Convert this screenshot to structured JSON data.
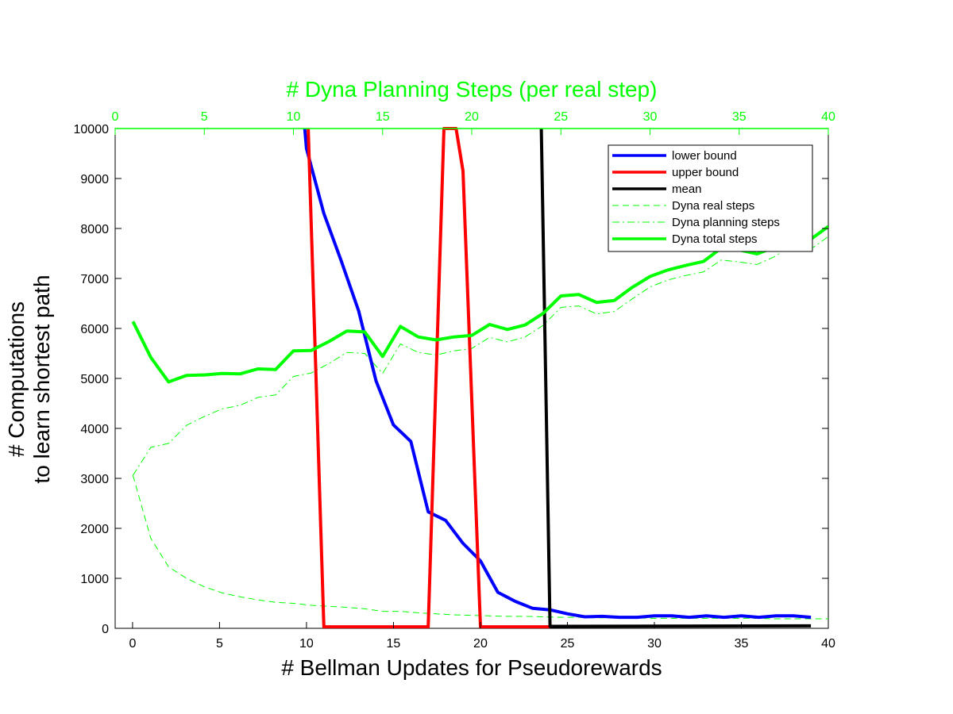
{
  "chart_data": {
    "type": "line",
    "xlabel": "# Bellman Updates for Pseudorewards",
    "ylabel_line1": "# Computations",
    "ylabel_line2": "to learn shortest path",
    "top_xlabel": "# Dyna Planning Steps (per real step)",
    "xlim": [
      -1,
      40
    ],
    "ylim": [
      0,
      10000
    ],
    "top_xlim": [
      0,
      40
    ],
    "xticks": [
      0,
      5,
      10,
      15,
      20,
      25,
      30,
      35,
      40
    ],
    "yticks": [
      0,
      1000,
      2000,
      3000,
      4000,
      5000,
      6000,
      7000,
      8000,
      9000,
      10000
    ],
    "top_xticks": [
      0,
      5,
      10,
      15,
      20,
      25,
      30,
      35,
      40
    ],
    "grid": false,
    "legend_position": "top-right",
    "series": [
      {
        "name": "lower bound",
        "axis": "bottom",
        "color": "#0000ff",
        "style": "solid-thick",
        "x": [
          9.9,
          10,
          11,
          12,
          13,
          14,
          15,
          16,
          17,
          18,
          19,
          20,
          21,
          22,
          23,
          24,
          25,
          26,
          27,
          28,
          29,
          30,
          31,
          32,
          33,
          34,
          35,
          36,
          37,
          38,
          39
        ],
        "y": [
          10000,
          9600,
          8300,
          7350,
          6350,
          4950,
          4070,
          3740,
          2330,
          2160,
          1700,
          1350,
          720,
          540,
          400,
          370,
          290,
          230,
          240,
          220,
          220,
          250,
          250,
          220,
          250,
          220,
          250,
          220,
          250,
          250,
          220
        ]
      },
      {
        "name": "upper bound",
        "axis": "bottom",
        "color": "#ff0000",
        "style": "solid-thick",
        "x": [
          10.1,
          11,
          17,
          17.9,
          18.6,
          19,
          20,
          24
        ],
        "y": [
          10000,
          30,
          30,
          10000,
          10000,
          9150,
          30,
          30
        ]
      },
      {
        "name": "mean",
        "axis": "bottom",
        "color": "#000000",
        "style": "solid-thick",
        "x": [
          23.5,
          24,
          39
        ],
        "y": [
          10000,
          40,
          50
        ]
      },
      {
        "name": "Dyna real steps",
        "axis": "top",
        "color": "#00ff00",
        "style": "dashed-thin",
        "x": [
          1,
          2,
          3,
          4,
          5,
          6,
          7,
          8,
          9,
          10,
          11,
          12,
          13,
          14,
          15,
          16,
          17,
          18,
          19,
          20,
          21,
          22,
          23,
          24,
          25,
          26,
          27,
          28,
          29,
          30,
          31,
          32,
          33,
          34,
          35,
          36,
          37,
          38,
          39,
          40
        ],
        "y": [
          3060,
          1800,
          1230,
          1000,
          830,
          710,
          630,
          570,
          520,
          500,
          460,
          440,
          420,
          390,
          340,
          340,
          310,
          290,
          270,
          260,
          250,
          240,
          240,
          230,
          220,
          220,
          210,
          210,
          210,
          200,
          200,
          200,
          200,
          200,
          200,
          200,
          190,
          190,
          190,
          190
        ]
      },
      {
        "name": "Dyna planning steps",
        "axis": "top",
        "color": "#00ff00",
        "style": "dashdot-thin",
        "x": [
          1,
          2,
          3,
          4,
          5,
          6,
          7,
          8,
          9,
          10,
          11,
          12,
          13,
          14,
          15,
          16,
          17,
          18,
          19,
          20,
          21,
          22,
          23,
          24,
          25,
          26,
          27,
          28,
          29,
          30,
          31,
          32,
          33,
          34,
          35,
          36,
          37,
          38,
          39,
          40
        ],
        "y": [
          3060,
          3620,
          3700,
          4060,
          4240,
          4390,
          4460,
          4620,
          4670,
          5040,
          5110,
          5300,
          5520,
          5500,
          5100,
          5690,
          5520,
          5470,
          5550,
          5600,
          5820,
          5730,
          5830,
          6060,
          6420,
          6450,
          6290,
          6340,
          6590,
          6830,
          6970,
          7060,
          7130,
          7370,
          7330,
          7280,
          7440,
          7680,
          7580,
          7840
        ]
      },
      {
        "name": "Dyna total steps",
        "axis": "top",
        "color": "#00ff00",
        "style": "solid-thick",
        "x": [
          1,
          2,
          3,
          4,
          5,
          6,
          7,
          8,
          9,
          10,
          11,
          12,
          13,
          14,
          15,
          16,
          17,
          18,
          19,
          20,
          21,
          22,
          23,
          24,
          25,
          26,
          27,
          28,
          29,
          30,
          31,
          32,
          33,
          34,
          35,
          36,
          37,
          38,
          39,
          40
        ],
        "y": [
          6140,
          5420,
          4930,
          5060,
          5070,
          5100,
          5090,
          5190,
          5180,
          5550,
          5560,
          5740,
          5950,
          5930,
          5440,
          6040,
          5830,
          5770,
          5830,
          5860,
          6080,
          5980,
          6070,
          6300,
          6650,
          6680,
          6520,
          6560,
          6820,
          7040,
          7170,
          7260,
          7340,
          7610,
          7570,
          7490,
          7630,
          7870,
          7780,
          8040
        ]
      }
    ]
  },
  "colors": {
    "top_axis": "#00ff00",
    "bottom_axis": "#000000"
  }
}
